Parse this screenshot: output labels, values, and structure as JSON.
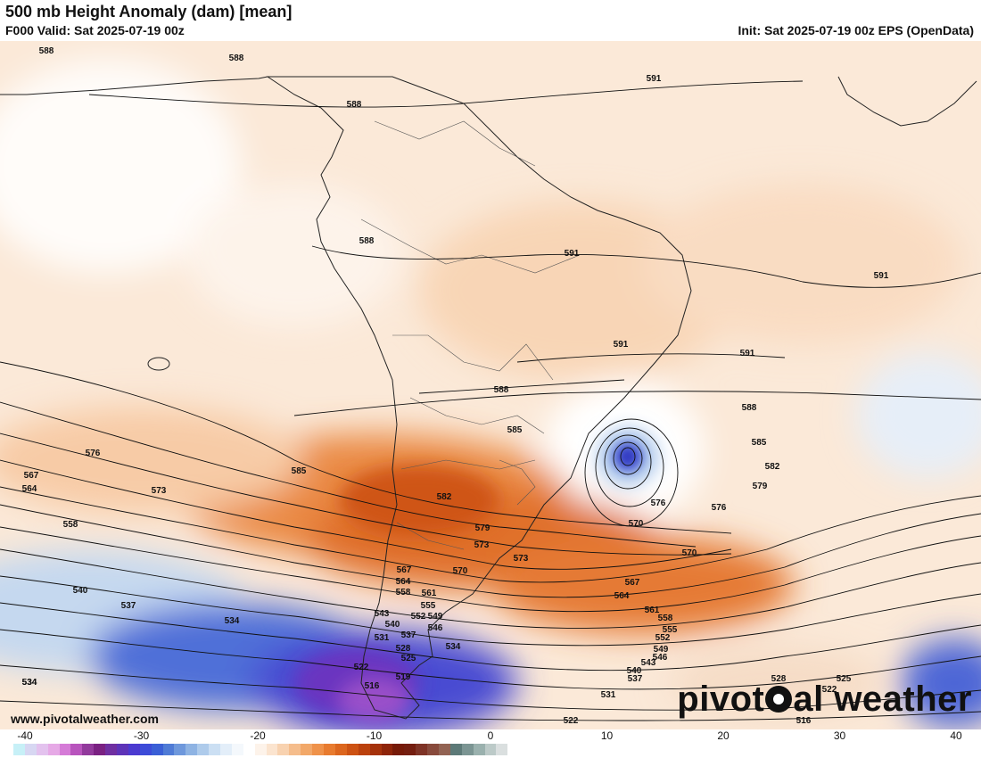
{
  "header": {
    "title": "500 mb Height Anomaly (dam) [mean]",
    "valid": "F000 Valid: Sat 2025-07-19 00z",
    "init": "Init: Sat 2025-07-19 00z EPS (OpenData)"
  },
  "footer": {
    "url": "www.pivotalweather.com",
    "brand_left": "pivot",
    "brand_right": "al weather"
  },
  "colorbar": {
    "ticks": [
      "-40",
      "-30",
      "-20",
      "-10",
      "0",
      "10",
      "20",
      "30",
      "40"
    ],
    "colors": [
      "#c7f0f7",
      "#d7d7f2",
      "#e3c2ee",
      "#e6a9e6",
      "#d57bd7",
      "#b854bd",
      "#923a9c",
      "#7a2182",
      "#6f2fa1",
      "#5d33b8",
      "#4b3ad0",
      "#3c4bd8",
      "#3a5fd6",
      "#4f7bd6",
      "#6e98dc",
      "#8eb3e3",
      "#aecbeb",
      "#cbdff3",
      "#e3eef9",
      "#f4f8fc",
      "#ffffff",
      "#fdf3ea",
      "#fbe4cf",
      "#f8d2b0",
      "#f5bd8c",
      "#f2a869",
      "#ef924a",
      "#e87b2f",
      "#dc661e",
      "#cd5213",
      "#bb410d",
      "#a5320b",
      "#8e2409",
      "#761a08",
      "#741e10",
      "#7e3326",
      "#884a3c",
      "#926353",
      "#5d7a78",
      "#7b9593",
      "#9ab1ae",
      "#bccac8",
      "#dadfdf"
    ],
    "range_min": -40,
    "range_max": 40,
    "units": "dam"
  },
  "contour_labels": [
    "588",
    "588",
    "591",
    "588",
    "588",
    "591",
    "591",
    "591",
    "591",
    "588",
    "588",
    "585",
    "585",
    "582",
    "576",
    "585",
    "582",
    "579",
    "567",
    "564",
    "573",
    "576",
    "573",
    "558",
    "579",
    "576",
    "570",
    "573",
    "570",
    "570",
    "567",
    "564",
    "561",
    "558",
    "555",
    "552",
    "549",
    "546",
    "543",
    "540",
    "537",
    "540",
    "537",
    "534",
    "567",
    "564",
    "558",
    "561",
    "555",
    "552",
    "549",
    "546",
    "543",
    "540",
    "537",
    "534",
    "531",
    "528",
    "525",
    "522",
    "519",
    "516",
    "534",
    "531",
    "528",
    "525",
    "522",
    "522",
    "516",
    "534"
  ]
}
